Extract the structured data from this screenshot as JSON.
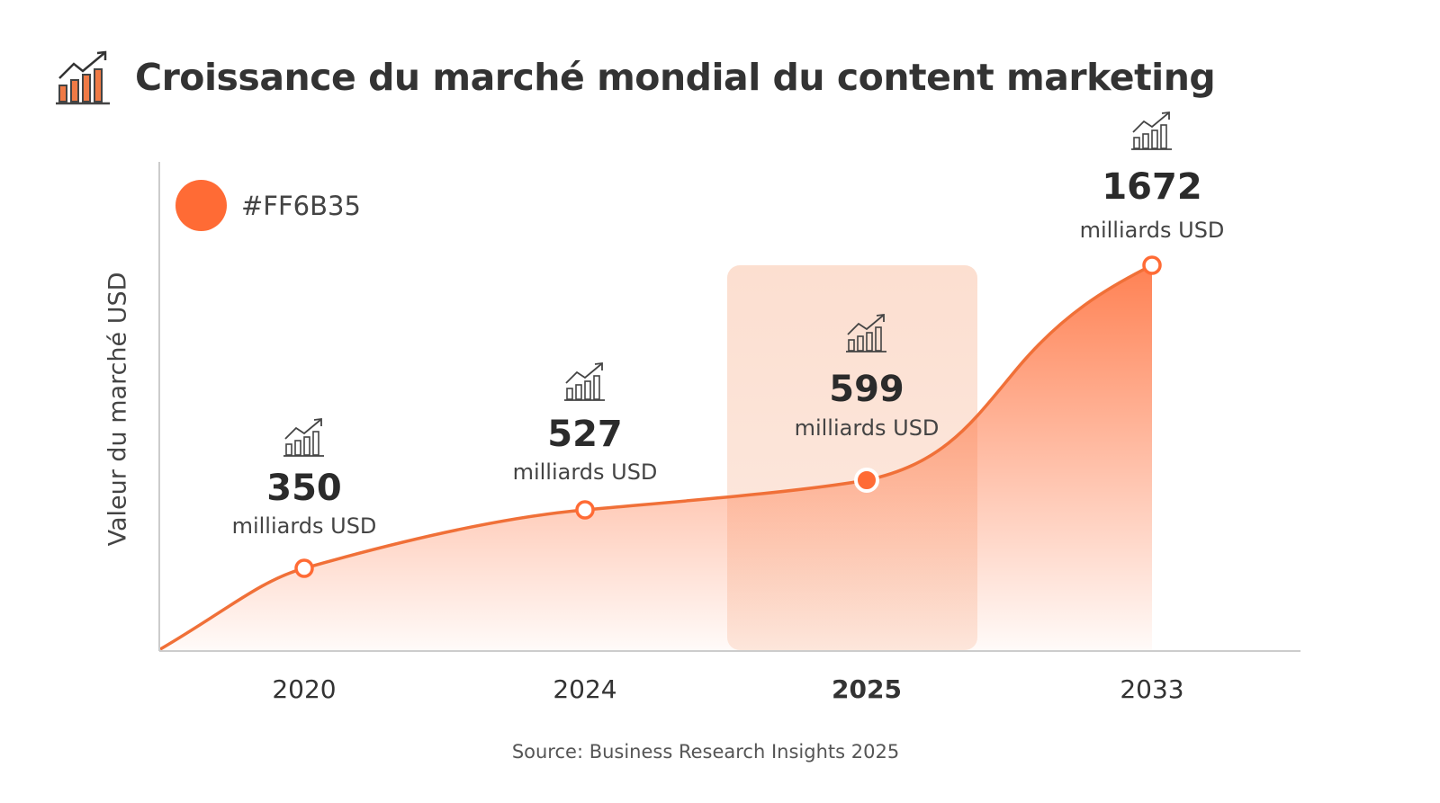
{
  "title": "Croissance du marché mondial du content marketing",
  "title_icon": "bar-chart-growth-icon",
  "legend": {
    "label": "#FF6B35",
    "color": "#FF6B35"
  },
  "source": "Source: Business Research Insights 2025",
  "chart_data": {
    "type": "area",
    "title": "Croissance du marché mondial du content marketing",
    "xlabel": "",
    "ylabel": "Valeur du marché USD",
    "categories": [
      "2020",
      "2024",
      "2025",
      "2033"
    ],
    "values": [
      350,
      527,
      599,
      1672
    ],
    "data_labels": [
      "350",
      "527",
      "599",
      "1672"
    ],
    "unit_label": "milliards USD",
    "highlighted_category": "2025",
    "series_color": "#FF6B35",
    "legend_position": "top-left",
    "grid": false,
    "point_icon": "bar-chart-growth-icon"
  }
}
